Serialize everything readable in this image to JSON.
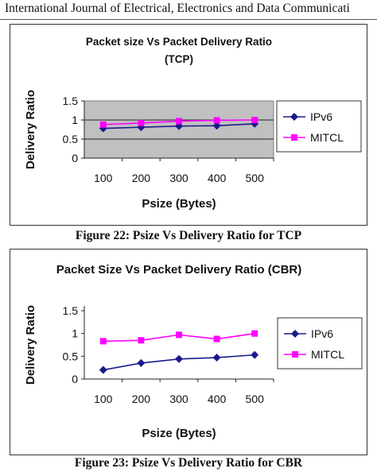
{
  "header": {
    "journal": "International Journal of Electrical, Electronics and Data Communicati"
  },
  "figures": [
    {
      "caption": "Figure 22: Psize Vs Delivery Ratio for TCP"
    },
    {
      "caption": "Figure 23: Psize Vs Delivery Ratio for CBR"
    }
  ],
  "colors": {
    "ipv6": "#1a1a8c",
    "mitcl": "#ff00ff",
    "plot_bg": "#c0c0c0"
  },
  "chart_data": [
    {
      "type": "line",
      "title_line1": "Packet size Vs Packet Delivery Ratio",
      "title_line2": "(TCP)",
      "xlabel": "Psize (Bytes)",
      "ylabel": "Delivery Ratio",
      "categories": [
        "100",
        "200",
        "300",
        "400",
        "500"
      ],
      "ylim": [
        0,
        1.5
      ],
      "yticks": [
        "0",
        "0.5",
        "1",
        "1.5"
      ],
      "grid": true,
      "legend": "right",
      "series": [
        {
          "name": "IPv6",
          "values": [
            0.78,
            0.81,
            0.84,
            0.85,
            0.9
          ],
          "marker": "diamond"
        },
        {
          "name": "MITCL",
          "values": [
            0.88,
            0.92,
            0.97,
            0.99,
            1.0
          ],
          "marker": "square"
        }
      ]
    },
    {
      "type": "line",
      "title_line1": "Packet Size Vs Packet Delivery Ratio (CBR)",
      "title_line2": "",
      "xlabel": "Psize (Bytes)",
      "ylabel": "Delivery Ratio",
      "categories": [
        "100",
        "200",
        "300",
        "400",
        "500"
      ],
      "ylim": [
        0,
        1.5
      ],
      "yticks": [
        "0",
        "0.5",
        "1",
        "1.5"
      ],
      "grid": false,
      "legend": "right",
      "series": [
        {
          "name": "IPv6",
          "values": [
            0.2,
            0.35,
            0.44,
            0.47,
            0.53
          ],
          "marker": "diamond"
        },
        {
          "name": "MITCL",
          "values": [
            0.83,
            0.85,
            0.97,
            0.88,
            1.0
          ],
          "marker": "square"
        }
      ]
    }
  ]
}
